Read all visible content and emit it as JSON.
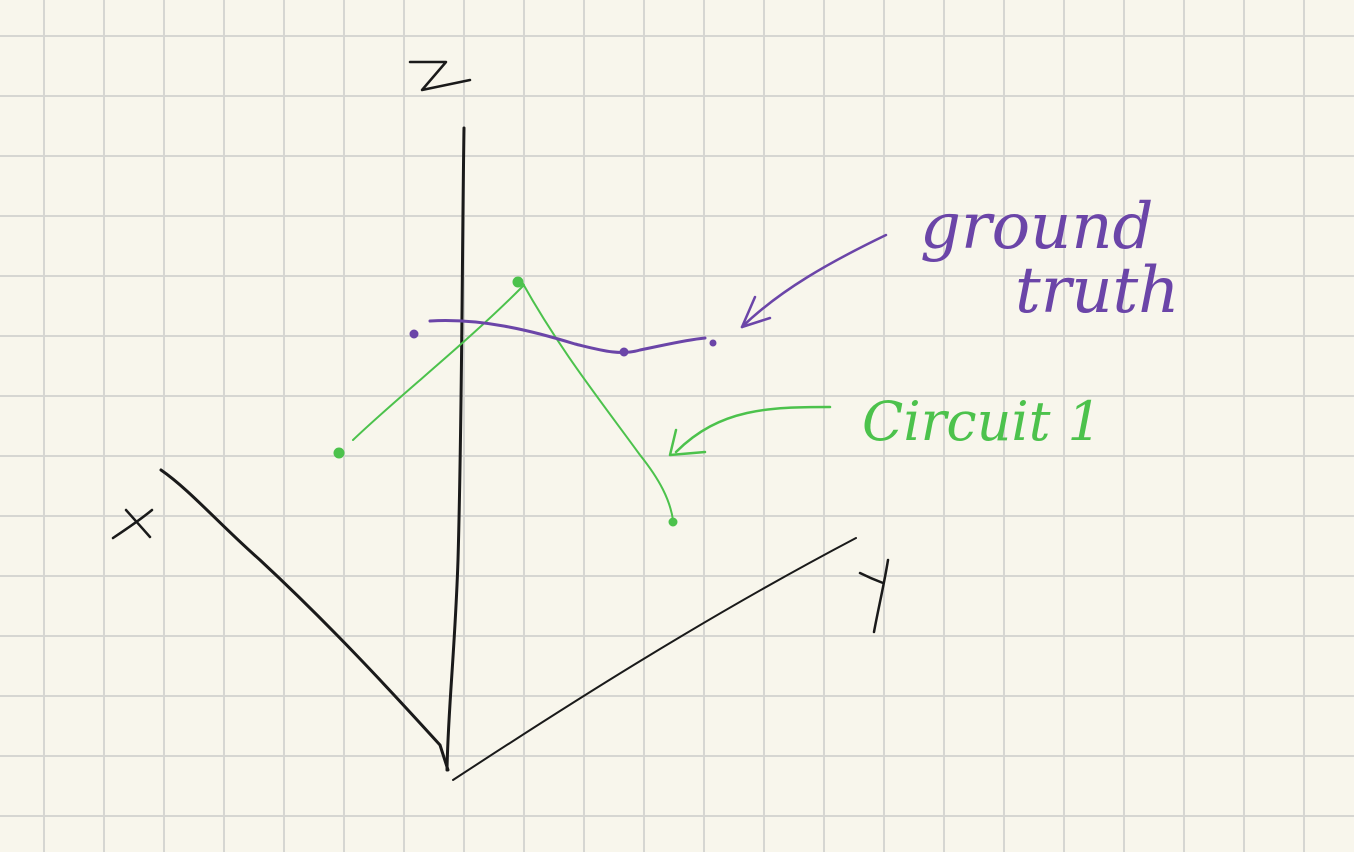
{
  "colors": {
    "paper": "#f8f6ec",
    "grid": "#d6d6d2",
    "axes": "#1a1a1a",
    "ground_truth": "#6b45a8",
    "circuit": "#4cc24c"
  },
  "axes": {
    "x_label": "X",
    "y_label": "Y",
    "z_label": "Z"
  },
  "annotations": {
    "ground_truth_line1": "ground",
    "ground_truth_line2": "truth",
    "circuit_label": "Circuit 1"
  }
}
